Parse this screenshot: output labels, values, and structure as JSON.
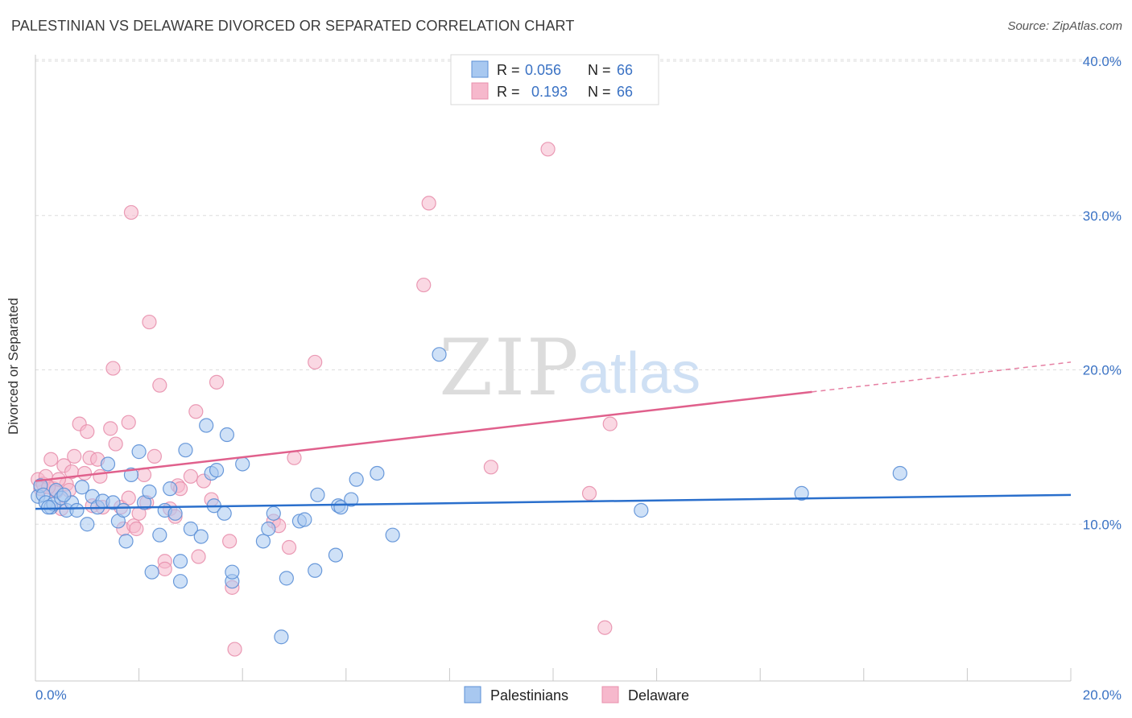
{
  "header": {
    "title": "PALESTINIAN VS DELAWARE DIVORCED OR SEPARATED CORRELATION CHART",
    "source": "Source: ZipAtlas.com"
  },
  "watermark": {
    "zip": "ZIP",
    "atlas": "atlas"
  },
  "colors": {
    "blue_fill": "#a8c8f0",
    "blue_stroke": "#5b8fd6",
    "blue_line": "#2a6fcc",
    "pink_fill": "#f6b8cc",
    "pink_stroke": "#e890ad",
    "pink_line": "#e0608c",
    "tick_text": "#3a72c4"
  },
  "stats_legend": {
    "rows": [
      {
        "r_label": "R =",
        "r_value": "0.056",
        "n_label": "N =",
        "n_value": "66"
      },
      {
        "r_label": "R =",
        "r_value": "0.193",
        "n_label": "N =",
        "n_value": "66"
      }
    ]
  },
  "chart_data": {
    "type": "scatter",
    "title": "PALESTINIAN VS DELAWARE DIVORCED OR SEPARATED CORRELATION CHART",
    "xlabel": "",
    "ylabel": "Divorced or Separated",
    "xlim": [
      0,
      20
    ],
    "ylim": [
      0,
      40
    ],
    "x_tick_labels": [
      "0.0%",
      "20.0%"
    ],
    "y_ticks": [
      10,
      20,
      30,
      40
    ],
    "y_tick_labels": [
      "10.0%",
      "20.0%",
      "30.0%",
      "40.0%"
    ],
    "grid": true,
    "legend_position": "bottom-center",
    "series": [
      {
        "name": "Palestinians",
        "color": "#a8c8f0",
        "trend": {
          "x": [
            0,
            20
          ],
          "y": [
            11.0,
            11.9
          ],
          "dashed_from": null
        },
        "points": [
          [
            0.05,
            11.8
          ],
          [
            0.1,
            12.5
          ],
          [
            0.15,
            11.9
          ],
          [
            0.2,
            11.4
          ],
          [
            0.3,
            11.1
          ],
          [
            0.35,
            11.3
          ],
          [
            0.4,
            12.2
          ],
          [
            0.5,
            11.7
          ],
          [
            0.6,
            10.9
          ],
          [
            0.7,
            11.4
          ],
          [
            0.8,
            10.9
          ],
          [
            0.9,
            12.4
          ],
          [
            1.0,
            10.0
          ],
          [
            1.1,
            11.8
          ],
          [
            1.2,
            11.1
          ],
          [
            1.3,
            11.5
          ],
          [
            1.4,
            13.9
          ],
          [
            1.5,
            11.4
          ],
          [
            1.6,
            10.2
          ],
          [
            1.7,
            10.9
          ],
          [
            1.75,
            8.9
          ],
          [
            1.85,
            13.2
          ],
          [
            2.0,
            14.7
          ],
          [
            2.1,
            11.4
          ],
          [
            2.2,
            12.1
          ],
          [
            2.25,
            6.9
          ],
          [
            2.4,
            9.3
          ],
          [
            2.5,
            10.9
          ],
          [
            2.6,
            12.3
          ],
          [
            2.7,
            10.7
          ],
          [
            2.8,
            7.6
          ],
          [
            2.8,
            6.3
          ],
          [
            2.9,
            14.8
          ],
          [
            3.0,
            9.7
          ],
          [
            3.2,
            9.2
          ],
          [
            3.3,
            16.4
          ],
          [
            3.4,
            13.3
          ],
          [
            3.45,
            11.2
          ],
          [
            3.5,
            13.5
          ],
          [
            3.65,
            10.7
          ],
          [
            3.7,
            15.8
          ],
          [
            3.8,
            6.3
          ],
          [
            3.8,
            6.9
          ],
          [
            4.0,
            13.9
          ],
          [
            4.4,
            8.9
          ],
          [
            4.5,
            9.7
          ],
          [
            4.6,
            10.7
          ],
          [
            4.75,
            2.7
          ],
          [
            4.85,
            6.5
          ],
          [
            5.1,
            10.2
          ],
          [
            5.2,
            10.3
          ],
          [
            5.4,
            7.0
          ],
          [
            5.45,
            11.9
          ],
          [
            5.8,
            8.0
          ],
          [
            5.85,
            11.2
          ],
          [
            5.9,
            11.1
          ],
          [
            6.1,
            11.6
          ],
          [
            6.2,
            12.9
          ],
          [
            6.6,
            13.3
          ],
          [
            6.9,
            9.3
          ],
          [
            7.8,
            21.0
          ],
          [
            11.7,
            10.9
          ],
          [
            14.8,
            12.0
          ],
          [
            16.7,
            13.3
          ],
          [
            0.25,
            11.1
          ],
          [
            0.55,
            11.9
          ]
        ]
      },
      {
        "name": "Delaware",
        "color": "#f6b8cc",
        "trend": {
          "x": [
            0,
            20
          ],
          "y": [
            12.8,
            20.5
          ],
          "dashed_from": 15.0
        },
        "points": [
          [
            0.05,
            12.9
          ],
          [
            0.1,
            12.3
          ],
          [
            0.15,
            12.6
          ],
          [
            0.2,
            13.1
          ],
          [
            0.3,
            14.2
          ],
          [
            0.35,
            12.3
          ],
          [
            0.4,
            12.1
          ],
          [
            0.5,
            11.0
          ],
          [
            0.55,
            13.8
          ],
          [
            0.6,
            12.6
          ],
          [
            0.7,
            13.4
          ],
          [
            0.75,
            14.4
          ],
          [
            0.85,
            16.5
          ],
          [
            0.95,
            13.3
          ],
          [
            1.0,
            16.0
          ],
          [
            1.05,
            14.3
          ],
          [
            1.1,
            11.2
          ],
          [
            1.2,
            14.2
          ],
          [
            1.25,
            13.1
          ],
          [
            1.3,
            11.1
          ],
          [
            1.45,
            16.2
          ],
          [
            1.5,
            20.1
          ],
          [
            1.55,
            15.2
          ],
          [
            1.65,
            11.1
          ],
          [
            1.7,
            9.7
          ],
          [
            1.8,
            11.7
          ],
          [
            1.8,
            16.6
          ],
          [
            1.85,
            30.2
          ],
          [
            1.9,
            9.9
          ],
          [
            1.95,
            9.7
          ],
          [
            2.1,
            13.2
          ],
          [
            2.15,
            11.4
          ],
          [
            2.2,
            23.1
          ],
          [
            2.3,
            14.4
          ],
          [
            2.4,
            19.0
          ],
          [
            2.5,
            7.6
          ],
          [
            2.5,
            7.1
          ],
          [
            2.6,
            11.0
          ],
          [
            2.7,
            10.5
          ],
          [
            2.75,
            12.5
          ],
          [
            2.8,
            12.3
          ],
          [
            3.0,
            13.1
          ],
          [
            3.1,
            17.3
          ],
          [
            3.15,
            7.9
          ],
          [
            3.25,
            12.8
          ],
          [
            3.4,
            11.6
          ],
          [
            3.5,
            19.2
          ],
          [
            3.75,
            8.9
          ],
          [
            3.8,
            5.9
          ],
          [
            3.85,
            1.9
          ],
          [
            4.6,
            10.2
          ],
          [
            4.7,
            9.9
          ],
          [
            4.9,
            8.5
          ],
          [
            5.0,
            14.3
          ],
          [
            5.4,
            20.5
          ],
          [
            7.5,
            25.5
          ],
          [
            7.6,
            30.8
          ],
          [
            8.8,
            13.7
          ],
          [
            9.9,
            34.3
          ],
          [
            10.7,
            12.0
          ],
          [
            11.0,
            3.3
          ],
          [
            11.1,
            16.5
          ],
          [
            0.45,
            12.9
          ],
          [
            0.65,
            12.2
          ],
          [
            0.25,
            12.4
          ],
          [
            2.0,
            10.7
          ]
        ]
      }
    ]
  }
}
